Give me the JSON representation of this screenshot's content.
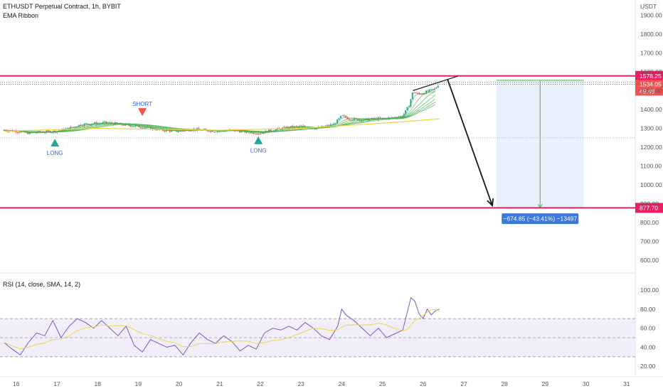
{
  "header": {
    "symbol_line": "ETHUSDT Perpetual Contract, 1h, BYBIT",
    "indicator": "EMA Ribbon"
  },
  "rsi_panel": {
    "title": "RSI (14, close, SMA, 14, 2)",
    "levels": [
      70,
      50,
      30
    ]
  },
  "colors": {
    "up": "#26a69a",
    "down": "#ef5350",
    "level_line": "#e91e63",
    "rsi_line": "#7e57c2",
    "rsi_ma": "#f2d64b",
    "target_zone": "#e3ecfb",
    "measure_label": "#3c78d8",
    "ribbon": "#4caf50",
    "ema_long": "#f5d142"
  },
  "chart_data": {
    "type": "candlestick",
    "price_axis": {
      "unit": "USDT",
      "ticks": [
        1900,
        1800,
        1700,
        1600,
        1500,
        1400,
        1300,
        1200,
        1100,
        1000,
        900,
        800,
        700,
        600
      ],
      "tick_labels": [
        "1900.00",
        "1800.00",
        "1700.00",
        "1600.00",
        "1500.00",
        "1400.00",
        "1300.00",
        "1200.00",
        "1100.00",
        "1000.00",
        "900.00",
        "800.00",
        "700.00",
        "600.00"
      ]
    },
    "rsi_axis": {
      "ticks": [
        100,
        80,
        60,
        40,
        20
      ],
      "tick_labels": [
        "100.00",
        "80.00",
        "60.00",
        "40.00",
        "20.00"
      ]
    },
    "x_axis": {
      "ticks": [
        16,
        17,
        18,
        19,
        20,
        21,
        22,
        23,
        24,
        25,
        26,
        27,
        28,
        29,
        30,
        31
      ],
      "tick_labels": [
        "16",
        "17",
        "18",
        "19",
        "20",
        "21",
        "22",
        "23",
        "24",
        "25",
        "26",
        "27",
        "28",
        "29",
        "30",
        "31"
      ]
    },
    "price_path": [
      [
        15.7,
        1290
      ],
      [
        16.0,
        1285
      ],
      [
        16.3,
        1275
      ],
      [
        16.6,
        1280
      ],
      [
        17.0,
        1285
      ],
      [
        17.3,
        1300
      ],
      [
        17.6,
        1320
      ],
      [
        17.9,
        1325
      ],
      [
        18.2,
        1330
      ],
      [
        18.6,
        1320
      ],
      [
        19.0,
        1310
      ],
      [
        19.3,
        1300
      ],
      [
        19.6,
        1290
      ],
      [
        20.0,
        1285
      ],
      [
        20.3,
        1295
      ],
      [
        20.6,
        1290
      ],
      [
        21.0,
        1285
      ],
      [
        21.3,
        1290
      ],
      [
        21.7,
        1280
      ],
      [
        22.0,
        1275
      ],
      [
        22.3,
        1290
      ],
      [
        22.7,
        1305
      ],
      [
        23.0,
        1310
      ],
      [
        23.4,
        1300
      ],
      [
        23.8,
        1320
      ],
      [
        24.0,
        1365
      ],
      [
        24.2,
        1350
      ],
      [
        24.5,
        1345
      ],
      [
        24.8,
        1350
      ],
      [
        25.2,
        1355
      ],
      [
        25.5,
        1365
      ],
      [
        25.65,
        1420
      ],
      [
        25.75,
        1495
      ],
      [
        25.9,
        1480
      ],
      [
        26.1,
        1495
      ],
      [
        26.3,
        1510
      ],
      [
        26.4,
        1540
      ]
    ],
    "ema_long_path": [
      [
        15.7,
        1285
      ],
      [
        18,
        1300
      ],
      [
        21,
        1290
      ],
      [
        23,
        1300
      ],
      [
        24.5,
        1320
      ],
      [
        25.5,
        1335
      ],
      [
        26.4,
        1350
      ]
    ],
    "horizontal_levels": [
      {
        "price": 1578.25,
        "label": "1578.25"
      },
      {
        "price": 877.7,
        "label": "877.70"
      }
    ],
    "current_price": {
      "price": 1534.05,
      "label": "1534.05",
      "countdown": "49:48"
    },
    "signals": [
      {
        "type": "LONG",
        "x": 16.95,
        "price": 1222
      },
      {
        "type": "SHORT",
        "x": 19.1,
        "price": 1388
      },
      {
        "type": "LONG",
        "x": 21.95,
        "price": 1235
      }
    ],
    "measure": {
      "label": "−674.85 (−43.41%) −13497",
      "x_start": 27.8,
      "x_end": 29.95,
      "price_top": 1555,
      "price_bottom": 879
    },
    "projection_arrow": {
      "from": [
        26.6,
        1560
      ],
      "to": [
        27.7,
        890
      ]
    },
    "wedge_lines": [
      [
        [
          25.75,
          1500
        ],
        [
          26.85,
          1577
        ]
      ]
    ],
    "rsi_values": [
      [
        15.7,
        45
      ],
      [
        15.9,
        38
      ],
      [
        16.1,
        32
      ],
      [
        16.3,
        45
      ],
      [
        16.5,
        55
      ],
      [
        16.7,
        52
      ],
      [
        16.9,
        68
      ],
      [
        17.1,
        50
      ],
      [
        17.3,
        62
      ],
      [
        17.5,
        70
      ],
      [
        17.7,
        66
      ],
      [
        17.9,
        60
      ],
      [
        18.1,
        68
      ],
      [
        18.3,
        60
      ],
      [
        18.5,
        52
      ],
      [
        18.7,
        62
      ],
      [
        18.9,
        42
      ],
      [
        19.1,
        35
      ],
      [
        19.3,
        48
      ],
      [
        19.5,
        44
      ],
      [
        19.7,
        40
      ],
      [
        19.9,
        42
      ],
      [
        20.1,
        32
      ],
      [
        20.3,
        45
      ],
      [
        20.5,
        55
      ],
      [
        20.7,
        48
      ],
      [
        20.9,
        44
      ],
      [
        21.1,
        52
      ],
      [
        21.3,
        46
      ],
      [
        21.5,
        36
      ],
      [
        21.7,
        42
      ],
      [
        21.9,
        38
      ],
      [
        22.1,
        55
      ],
      [
        22.3,
        60
      ],
      [
        22.5,
        58
      ],
      [
        22.7,
        62
      ],
      [
        22.9,
        58
      ],
      [
        23.1,
        66
      ],
      [
        23.3,
        60
      ],
      [
        23.5,
        52
      ],
      [
        23.7,
        48
      ],
      [
        23.9,
        62
      ],
      [
        24.0,
        80
      ],
      [
        24.1,
        74
      ],
      [
        24.3,
        68
      ],
      [
        24.5,
        60
      ],
      [
        24.7,
        52
      ],
      [
        24.9,
        60
      ],
      [
        25.1,
        50
      ],
      [
        25.3,
        54
      ],
      [
        25.5,
        58
      ],
      [
        25.6,
        75
      ],
      [
        25.7,
        92
      ],
      [
        25.8,
        88
      ],
      [
        25.9,
        75
      ],
      [
        26.0,
        70
      ],
      [
        26.1,
        80
      ],
      [
        26.2,
        74
      ],
      [
        26.3,
        78
      ],
      [
        26.4,
        80
      ]
    ]
  }
}
